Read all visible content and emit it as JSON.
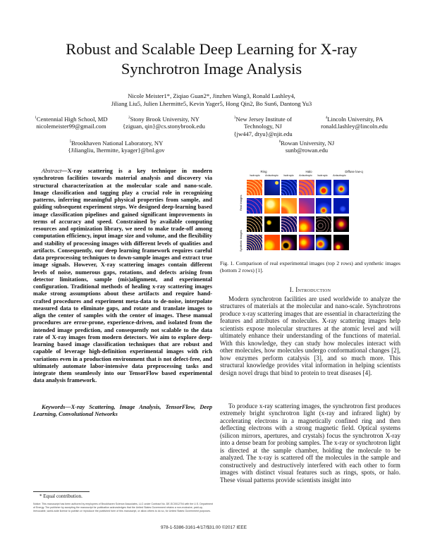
{
  "title": "Robust and Scalable Deep Learning for X-ray Synchrotron Image Analysis",
  "authors_line1": "Nicole Meister1*, Ziqiao Guan2*, Jinzhen Wang3, Ronald Lashley4,",
  "authors_line2": "Jiliang Liu5, Julien Lhermitte5, Kevin Yager5, Hong Qin2, Bo Sun6, Dantong Yu3",
  "affiliations": [
    {
      "num": "1",
      "lines": [
        "Centennial High School, MD",
        "nicolemeister99@gmail.com"
      ]
    },
    {
      "num": "2",
      "lines": [
        "Stony Brook University, NY",
        "{ziguan, qin}@cs.stonybrook.edu"
      ]
    },
    {
      "num": "3",
      "lines": [
        "New Jersey Institute of",
        "Technology, NJ",
        "{jw447, dtyu}@njit.edu"
      ]
    },
    {
      "num": "4",
      "lines": [
        "Lincoln University, PA",
        "ronald.lashley@lincoln.edu"
      ]
    },
    {
      "num": "5",
      "lines": [
        "Brookhaven National Laboratory, NY",
        "{Jiliangliu, lhermitte, kyager}@bnl.gov"
      ]
    },
    {
      "num": "6",
      "lines": [
        "Rowan University, NJ",
        "sunb@rowan.edu"
      ]
    }
  ],
  "abstract": {
    "label": "Abstract",
    "text": "—X-ray scattering is a key technique in modern synchrotron facilities towards material analysis and discovery via structural characterization at the molecular scale and nano-scale. Image classification and tagging play a crucial role in recognizing patterns, inferring meaningful physical properties from sample, and guiding subsequent experiment steps. We designed deep-learning based image classification pipelines and gained significant improvements in terms of accuracy and speed. Constrained by available computing resources and optimization library, we need to make trade-off among computation efficiency, input image size and volume, and the flexibility and stability of processing images with different levels of qualities and artifacts. Consequently, our deep learning framework requires careful data preprocessing techniques to down-sample images and extract true image signals. However, X-ray scattering images contain different levels of noise, numerous gaps, rotations, and defects arising from detector limitations, sample (mis)alignment, and experimental configuration. Traditional methods of healing x-ray scattering images make strong assumptions about these artifacts and require hand-crafted procedures and experiment meta-data to de-noise, interpolate measured data to eliminate gaps, and rotate and translate images to align the center of samples with the center of images. These manual procedures are error-prone, experience-driven, and isolated from the intended image prediction, and consequently not scalable to the data rate of X-ray images from modern detectors. We aim to explore deep-learning based image classification techniques that are robust and capable of leverage high-definition experimental images with rich variations even in a production environment that is not defect-free, and ultimately automate labor-intensive data preprocessing tasks and integrate them seamlessly into our TensorFlow based experimental data analysis framework."
  },
  "keywords": "Keywords—X-ray Scattering, Image Analysis, TensorFlow, Deep Learning, Convolutional Networks",
  "figure": {
    "groups": [
      "Ring",
      "Halo",
      "Diffuse low-q"
    ],
    "columns": [
      "Isotropic",
      "Anisotropic",
      "Isotropic",
      "Anisotropic",
      "Isotropic",
      "Anisotropic"
    ],
    "row_labels": [
      "Real Images",
      "Synthetic Images"
    ],
    "caption": "Fig. 1.  Comparison of real experimental images (top 2 rows) and synthetic images (bottom 2 rows) [1]."
  },
  "intro": {
    "heading": "I.   Introduction",
    "p1": "Modern synchrotron facilities are used worldwide to analyze the structures of materials at the molecular and nano-scale. Synchrotrons produce x-ray scattering images that are essential in characterizing the features and attributes of molecules. X-ray scattering images help scientists expose molecular structures at the atomic level and will ultimately enhance their understanding of the functions of material. With this knowledge, they can study how molecules interact with other molecules, how molecules undergo conformational changes [2], how enzymes perform catalysis [3], and so much more. This structural knowledge provides vital information in helping scientists design novel drugs that bind to protein to treat diseases [4].",
    "p2": "To produce x-ray scattering images, the synchrotron first produces extremely bright synchrotron light (x-ray and infrared light) by accelerating electrons in a magnetically confined ring and then deflecting electrons with a strong magnetic field. Optical systems (silicon mirrors, apertures, and crystals) focus the synchrotron X-ray into a dense beam for probing samples. The x-ray or synchrotron light is directed at the sample chamber, holding the molecule to be analyzed. The x-ray is scattered off the molecules in the sample and constructively and destructively interfered with each other to form images with distinct visual features such as rings, spots, or halo.  These visual patterns provide scientists insight into"
  },
  "footnote": "* Equal contribution.",
  "notice": "Notice: This manuscript has been authored by employees of Brookhaven Science Associates, LLC under Contract No. DE-SC0012704 with the U.S. Department of Energy. The publisher by accepting the manuscript for publication acknowledges that the United States Government retains a non-exclusive, paid-up, irrevocable, world-wide license to publish or reproduce the published form of this manuscript, or allow others to do so, for United States Government purposes.",
  "isbn": "978-1-5386-3161-4/17/$31.00 ©2017 IEEE"
}
